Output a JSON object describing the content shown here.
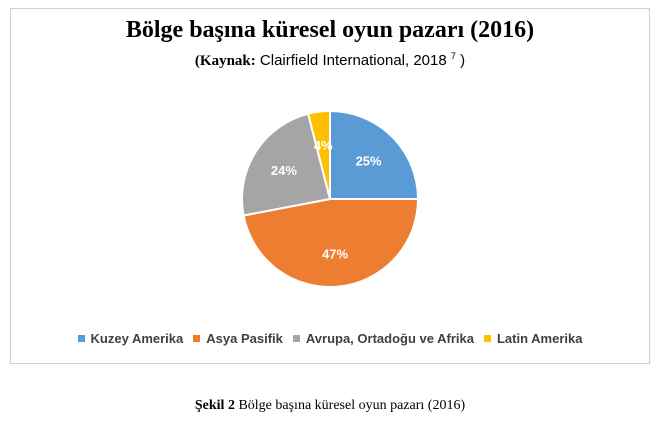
{
  "chart_data": {
    "type": "pie",
    "title": "Bölge başına küresel oyun pazarı (2016)",
    "subtitle": {
      "label": "(Kaynak:",
      "text": "Clairfield International, 2018",
      "sup": "7",
      "close": ")"
    },
    "categories": [
      "Kuzey Amerika",
      "Asya Pasifik",
      "Avrupa, Ortadoğu ve Afrika",
      "Latin Amerika"
    ],
    "values": [
      25,
      47,
      24,
      4
    ],
    "data_labels": [
      "25%",
      "47%",
      "24%",
      "4%"
    ],
    "colors": [
      "#5B9BD5",
      "#ED7D31",
      "#A5A5A5",
      "#FFC000"
    ],
    "legend_position": "bottom"
  },
  "caption": {
    "label": "Şekil 2",
    "text": " Bölge başına küresel oyun pazarı (2016)"
  }
}
